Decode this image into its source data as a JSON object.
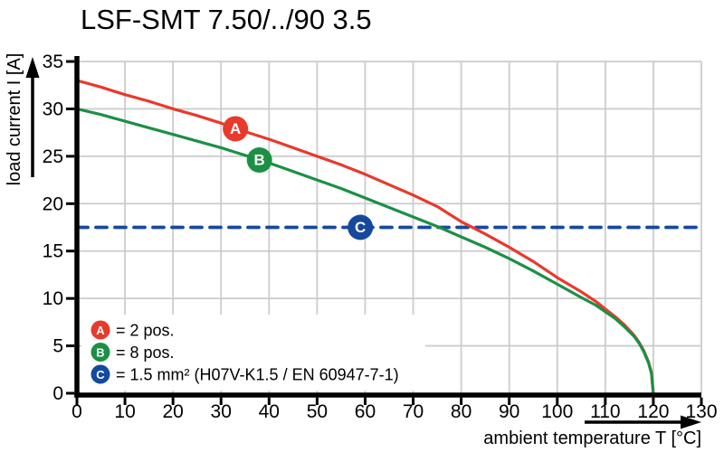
{
  "colors": {
    "red": "#e73a2b",
    "green": "#1d8f45",
    "blue": "#15499e",
    "grid": "#cccccc",
    "axis": "#000000",
    "legend_box": "#ffffff"
  },
  "chart_data": {
    "type": "line",
    "title": "LSF-SMT 7.50/../90 3.5",
    "xlabel": "ambient temperature T [°C]",
    "ylabel": "load current I [A]",
    "xlim": [
      0,
      130
    ],
    "ylim": [
      0,
      35
    ],
    "xticks": [
      0,
      10,
      20,
      30,
      40,
      50,
      60,
      70,
      80,
      90,
      100,
      110,
      120,
      130
    ],
    "xtick_labels": [
      "0",
      "10",
      "20",
      "30",
      "40",
      "50",
      "60",
      "70",
      "80",
      "90",
      "100",
      "110",
      "120",
      "130"
    ],
    "yticks": [
      0,
      5,
      10,
      15,
      20,
      25,
      30,
      35
    ],
    "ytick_labels": [
      "0",
      "5",
      "10",
      "15",
      "20",
      "25",
      "30",
      "35"
    ],
    "grid": true,
    "legend_position": "lower-left",
    "series": [
      {
        "letter": "C",
        "name": "1.5 mm² (H07V-K1.5 / EN 60947-7-1)",
        "color": "#15499e",
        "dashed": true,
        "marker": {
          "x": 59,
          "y": 17.5
        },
        "points": [
          [
            0,
            17.5
          ],
          [
            130,
            17.5
          ]
        ]
      },
      {
        "letter": "A",
        "name": "2 pos.",
        "color": "#e73a2b",
        "dashed": false,
        "marker": {
          "x": 33,
          "y": 27.9
        },
        "points": [
          [
            0,
            33
          ],
          [
            5,
            32.3
          ],
          [
            10,
            31.5
          ],
          [
            15,
            30.8
          ],
          [
            20,
            30
          ],
          [
            25,
            29.3
          ],
          [
            30,
            28.5
          ],
          [
            35,
            27.6
          ],
          [
            40,
            26.8
          ],
          [
            45,
            25.9
          ],
          [
            50,
            25
          ],
          [
            55,
            24.1
          ],
          [
            60,
            23.1
          ],
          [
            65,
            22
          ],
          [
            70,
            20.9
          ],
          [
            75,
            19.7
          ],
          [
            80,
            18.1
          ],
          [
            85,
            16.8
          ],
          [
            90,
            15.4
          ],
          [
            95,
            13.9
          ],
          [
            100,
            12.2
          ],
          [
            105,
            10.7
          ],
          [
            108,
            9.7
          ],
          [
            110,
            8.9
          ],
          [
            112,
            8.1
          ],
          [
            114,
            7.2
          ],
          [
            116,
            6.1
          ],
          [
            117,
            5.4
          ],
          [
            118,
            4.5
          ],
          [
            119,
            3.3
          ],
          [
            119.6,
            2.2
          ],
          [
            120,
            0
          ]
        ]
      },
      {
        "letter": "B",
        "name": "8 pos.",
        "color": "#1d8f45",
        "dashed": false,
        "marker": {
          "x": 38,
          "y": 24.6
        },
        "points": [
          [
            0,
            30
          ],
          [
            5,
            29.4
          ],
          [
            10,
            28.7
          ],
          [
            15,
            28
          ],
          [
            20,
            27.3
          ],
          [
            25,
            26.6
          ],
          [
            30,
            25.9
          ],
          [
            35,
            25.1
          ],
          [
            40,
            24.3
          ],
          [
            45,
            23.4
          ],
          [
            50,
            22.5
          ],
          [
            55,
            21.6
          ],
          [
            60,
            20.6
          ],
          [
            65,
            19.6
          ],
          [
            70,
            18.6
          ],
          [
            75,
            17.6
          ],
          [
            80,
            16.5
          ],
          [
            85,
            15.4
          ],
          [
            90,
            14.2
          ],
          [
            95,
            12.9
          ],
          [
            100,
            11.5
          ],
          [
            105,
            10.1
          ],
          [
            108,
            9.3
          ],
          [
            110,
            8.6
          ],
          [
            112,
            7.9
          ],
          [
            114,
            7
          ],
          [
            116,
            6
          ],
          [
            117,
            5.3
          ],
          [
            118,
            4.4
          ],
          [
            119,
            3.2
          ],
          [
            119.6,
            2.1
          ],
          [
            120,
            0
          ]
        ]
      }
    ],
    "legend": [
      {
        "letter": "A",
        "color": "#e73a2b",
        "text": "= 2 pos."
      },
      {
        "letter": "B",
        "color": "#1d8f45",
        "text": "= 8 pos."
      },
      {
        "letter": "C",
        "color": "#15499e",
        "text": "= 1.5 mm² (H07V-K1.5 / EN 60947-7-1)"
      }
    ]
  }
}
